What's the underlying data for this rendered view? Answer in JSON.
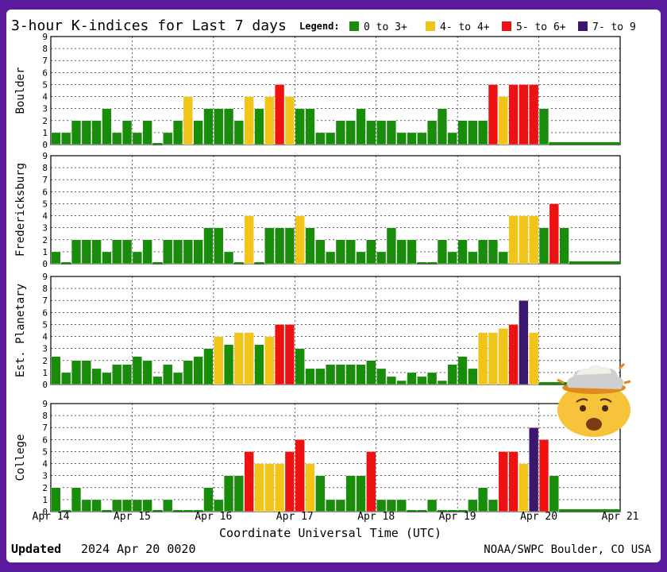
{
  "title": "3-hour K-indices for Last 7 days",
  "legend": {
    "label": "Legend:",
    "items": [
      {
        "label": "0 to 3+",
        "color": "#1a8c0c"
      },
      {
        "label": "4- to 4+",
        "color": "#f0c419"
      },
      {
        "label": "5- to 6+",
        "color": "#ee1111"
      },
      {
        "label": "7- to 9",
        "color": "#3b1870"
      }
    ]
  },
  "x_axis": {
    "title": "Coordinate Universal Time (UTC)",
    "ticks": [
      "Apr 14",
      "Apr 15",
      "Apr 16",
      "Apr 17",
      "Apr 18",
      "Apr 19",
      "Apr 20",
      "Apr 21"
    ]
  },
  "footer": {
    "updated_label": "Updated",
    "updated_value": "2024 Apr 20 0020",
    "source": "NOAA/SWPC Boulder, CO USA"
  },
  "emoji": "exploding-head-emoji",
  "chart_data": [
    {
      "type": "bar",
      "station": "Boulder",
      "ylim": [
        0,
        9
      ],
      "yticks": [
        0,
        1,
        2,
        3,
        4,
        5,
        6,
        7,
        8,
        9
      ],
      "grid": true,
      "x_unit": "3-hour intervals starting Apr 14 00 UT",
      "values": [
        1,
        1,
        2,
        2,
        2,
        3,
        1,
        2,
        1,
        2,
        0,
        1,
        2,
        4,
        2,
        3,
        3,
        3,
        2,
        4,
        3,
        4,
        5,
        4,
        3,
        3,
        1,
        1,
        2,
        2,
        3,
        2,
        2,
        2,
        1,
        1,
        1,
        2,
        3,
        1,
        2,
        2,
        2,
        5,
        4,
        5,
        5,
        5,
        3
      ]
    },
    {
      "type": "bar",
      "station": "Fredericksburg",
      "ylim": [
        0,
        9
      ],
      "yticks": [
        0,
        1,
        2,
        3,
        4,
        5,
        6,
        7,
        8,
        9
      ],
      "grid": true,
      "x_unit": "3-hour intervals starting Apr 14 00 UT",
      "values": [
        1,
        0,
        2,
        2,
        2,
        1,
        2,
        2,
        1,
        2,
        0,
        2,
        2,
        2,
        2,
        3,
        3,
        1,
        0,
        4,
        0,
        3,
        3,
        3,
        4,
        3,
        2,
        1,
        2,
        2,
        1,
        2,
        1,
        3,
        2,
        2,
        0,
        0,
        2,
        1,
        2,
        1,
        2,
        2,
        1,
        4,
        4,
        4,
        3,
        5,
        3
      ]
    },
    {
      "type": "bar",
      "station": "Est. Planetary",
      "ylim": [
        0,
        9
      ],
      "yticks": [
        0,
        1,
        2,
        3,
        4,
        5,
        6,
        7,
        8,
        9
      ],
      "grid": true,
      "x_unit": "3-hour intervals starting Apr 14 00 UT",
      "values": [
        2.33,
        1,
        2,
        2,
        1.33,
        1,
        1.67,
        1.67,
        2.33,
        2,
        0.67,
        1.67,
        1,
        2,
        2.33,
        3,
        4,
        3.33,
        4.33,
        4.33,
        3.33,
        4,
        5,
        5,
        3,
        1.33,
        1.33,
        1.67,
        1.67,
        1.67,
        1.67,
        2,
        1.33,
        0.67,
        0.33,
        1,
        0.67,
        1,
        0.33,
        1.67,
        2.33,
        1.33,
        4.33,
        4.33,
        4.67,
        5,
        7,
        4.33
      ]
    },
    {
      "type": "bar",
      "station": "College",
      "ylim": [
        0,
        9
      ],
      "yticks": [
        0,
        1,
        2,
        3,
        4,
        5,
        6,
        7,
        8,
        9
      ],
      "grid": true,
      "x_unit": "3-hour intervals starting Apr 14 00 UT",
      "values": [
        2,
        0,
        2,
        1,
        1,
        0,
        1,
        1,
        1,
        1,
        0,
        1,
        0,
        0,
        0,
        2,
        1,
        3,
        3,
        5,
        4,
        4,
        4,
        5,
        6,
        4,
        3,
        1,
        1,
        3,
        3,
        5,
        1,
        1,
        1,
        0,
        0,
        1,
        0,
        0,
        0,
        1,
        2,
        1,
        5,
        5,
        4,
        7,
        6,
        3
      ]
    }
  ]
}
